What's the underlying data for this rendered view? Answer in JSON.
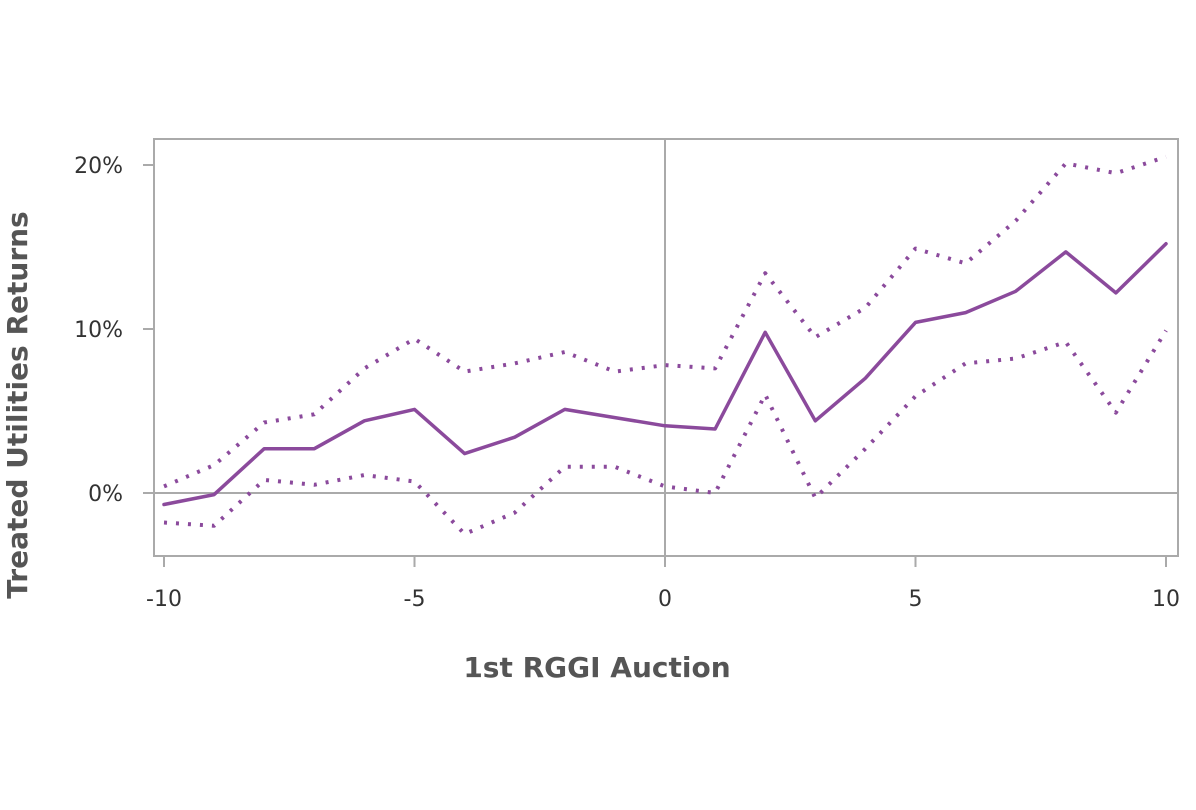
{
  "chart_data": {
    "type": "line",
    "title": "",
    "xlabel": "1st RGGI Auction",
    "ylabel": "Treated Utilities Returns",
    "xlim": [
      -10,
      10
    ],
    "ylim": [
      -4,
      21.6
    ],
    "x_ticks": [
      -10,
      -5,
      0,
      5,
      10
    ],
    "x_tick_labels": [
      "-10",
      "-5",
      "0",
      "5",
      "10"
    ],
    "y_ticks": [
      0,
      10,
      20
    ],
    "y_tick_labels": [
      "0%",
      "10%",
      "20%"
    ],
    "reference_lines": {
      "x": 0,
      "y": 0
    },
    "grid": false,
    "legend": "none",
    "color": "#8b4a9c",
    "x": [
      -10,
      -9,
      -8,
      -7,
      -6,
      -5,
      -4,
      -3,
      -2,
      -1,
      0,
      1,
      2,
      3,
      4,
      5,
      6,
      7,
      8,
      9,
      10
    ],
    "series": [
      {
        "style": "solid",
        "values": [
          -0.7,
          -0.1,
          2.7,
          2.7,
          4.4,
          5.1,
          2.4,
          3.4,
          5.1,
          4.6,
          4.1,
          3.9,
          9.8,
          4.4,
          7.0,
          10.4,
          11.0,
          12.3,
          14.7,
          12.2,
          15.2
        ]
      },
      {
        "style": "dotted",
        "values": [
          0.4,
          1.7,
          4.3,
          4.8,
          7.6,
          9.4,
          7.4,
          7.9,
          8.6,
          7.4,
          7.8,
          7.6,
          13.4,
          9.5,
          11.3,
          14.9,
          14.0,
          16.6,
          20.1,
          19.5,
          20.5
        ]
      },
      {
        "style": "dotted",
        "values": [
          -1.8,
          -2.0,
          0.8,
          0.5,
          1.1,
          0.7,
          -2.5,
          -1.2,
          1.6,
          1.6,
          0.4,
          0.0,
          6.0,
          -0.3,
          2.7,
          5.9,
          7.9,
          8.2,
          9.2,
          4.9,
          9.9
        ]
      }
    ]
  }
}
